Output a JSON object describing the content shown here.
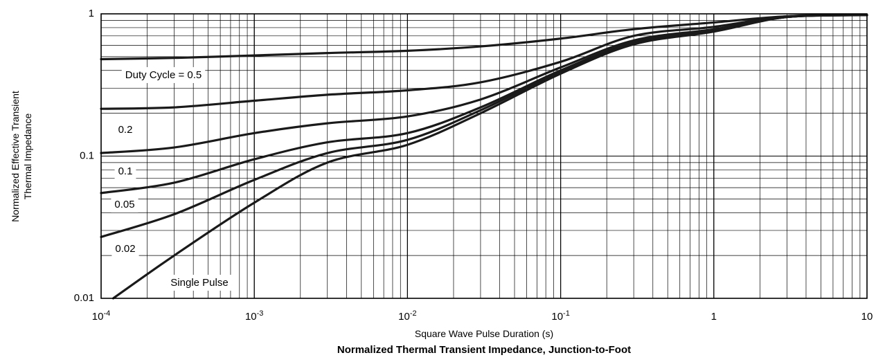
{
  "chart_data": {
    "type": "line",
    "title": "Normalized Thermal Transient Impedance, Junction-to-Foot",
    "xlabel": "Square Wave Pulse Duration (s)",
    "ylabel_lines": [
      "Normalized Effective Transient",
      "Thermal Impedance"
    ],
    "x_scale": "log",
    "y_scale": "log",
    "xlim": [
      0.0001,
      10
    ],
    "ylim": [
      0.01,
      1
    ],
    "x_ticks": [
      {
        "base": "10",
        "exp": "-4"
      },
      {
        "base": "10",
        "exp": "-3"
      },
      {
        "base": "10",
        "exp": "-2"
      },
      {
        "base": "10",
        "exp": "-1"
      },
      {
        "base": "1",
        "exp": ""
      },
      {
        "base": "10",
        "exp": ""
      }
    ],
    "y_ticks": [
      "0.01",
      "0.1",
      "1"
    ],
    "grid": true,
    "series": [
      {
        "name": "Duty Cycle = 0.5",
        "x": [
          0.0001,
          0.0003,
          0.001,
          0.003,
          0.01,
          0.03,
          0.1,
          0.3,
          1,
          3,
          10
        ],
        "y": [
          0.48,
          0.49,
          0.51,
          0.53,
          0.55,
          0.59,
          0.67,
          0.78,
          0.87,
          0.96,
          0.98
        ]
      },
      {
        "name": "0.2",
        "x": [
          0.0001,
          0.0003,
          0.001,
          0.003,
          0.01,
          0.03,
          0.1,
          0.3,
          1,
          3,
          10
        ],
        "y": [
          0.215,
          0.22,
          0.245,
          0.27,
          0.29,
          0.33,
          0.46,
          0.7,
          0.81,
          0.96,
          0.98
        ]
      },
      {
        "name": "0.1",
        "x": [
          0.0001,
          0.0003,
          0.001,
          0.003,
          0.01,
          0.03,
          0.1,
          0.3,
          1,
          3,
          10
        ],
        "y": [
          0.105,
          0.115,
          0.145,
          0.17,
          0.19,
          0.25,
          0.42,
          0.65,
          0.78,
          0.95,
          0.98
        ]
      },
      {
        "name": "0.05",
        "x": [
          0.0001,
          0.0003,
          0.001,
          0.003,
          0.01,
          0.03,
          0.1,
          0.3,
          1,
          3,
          10
        ],
        "y": [
          0.055,
          0.065,
          0.095,
          0.125,
          0.145,
          0.22,
          0.4,
          0.63,
          0.77,
          0.95,
          0.98
        ]
      },
      {
        "name": "0.02",
        "x": [
          0.0001,
          0.0003,
          0.001,
          0.003,
          0.01,
          0.03,
          0.1,
          0.3,
          1,
          3,
          10
        ],
        "y": [
          0.027,
          0.039,
          0.068,
          0.105,
          0.13,
          0.21,
          0.39,
          0.62,
          0.76,
          0.95,
          0.98
        ]
      },
      {
        "name": "Single Pulse",
        "x": [
          0.00012,
          0.0003,
          0.001,
          0.003,
          0.01,
          0.03,
          0.1,
          0.3,
          1,
          3,
          10
        ],
        "y": [
          0.01,
          0.02,
          0.047,
          0.09,
          0.12,
          0.2,
          0.38,
          0.61,
          0.75,
          0.95,
          0.98
        ]
      }
    ]
  }
}
